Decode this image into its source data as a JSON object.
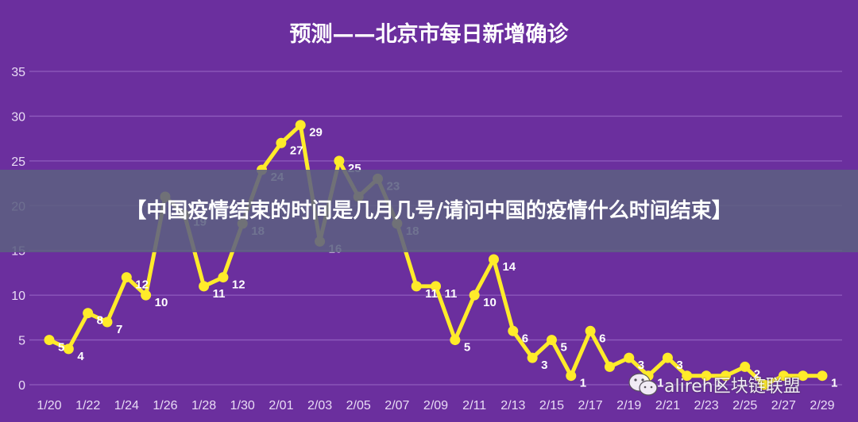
{
  "chart_data": {
    "type": "line",
    "title": "预测——北京市每日新增确诊",
    "xlabel": "",
    "ylabel": "",
    "ylim": [
      0,
      35
    ],
    "yticks": [
      0,
      5,
      10,
      15,
      20,
      25,
      30,
      35
    ],
    "grid": true,
    "x_tick_labels": [
      "1/20",
      "1/22",
      "1/24",
      "1/26",
      "1/28",
      "1/30",
      "2/01",
      "2/03",
      "2/05",
      "2/07",
      "2/09",
      "2/11",
      "2/13",
      "2/15",
      "2/17",
      "2/19",
      "2/21",
      "2/23",
      "2/25",
      "2/27",
      "2/29"
    ],
    "categories": [
      "1/20",
      "1/21",
      "1/22",
      "1/23",
      "1/24",
      "1/25",
      "1/26",
      "1/27",
      "1/28",
      "1/29",
      "1/30",
      "1/31",
      "2/01",
      "2/02",
      "2/03",
      "2/04",
      "2/05",
      "2/06",
      "2/07",
      "2/08",
      "2/09",
      "2/10",
      "2/11",
      "2/12",
      "2/13",
      "2/14",
      "2/15",
      "2/16",
      "2/17",
      "2/18",
      "2/19",
      "2/20",
      "2/21",
      "2/22",
      "2/23",
      "2/24",
      "2/25",
      "2/26",
      "2/27",
      "2/28",
      "2/29"
    ],
    "series": [
      {
        "name": "",
        "color": "#ffeb2a",
        "values": [
          5,
          4,
          8,
          7,
          12,
          10,
          21,
          19,
          11,
          12,
          18,
          24,
          27,
          29,
          16,
          25,
          21,
          23,
          18,
          11,
          11,
          5,
          10,
          14,
          6,
          3,
          5,
          1,
          6,
          2,
          3,
          1,
          3,
          1,
          1,
          1,
          2,
          0,
          1,
          1,
          1
        ]
      }
    ],
    "point_labels": [
      "5",
      "4",
      "8",
      "7",
      "12",
      "10",
      "",
      "19",
      "11",
      "12",
      "18",
      "24",
      "27",
      "29",
      "16",
      "25",
      "",
      "23",
      "18",
      "11",
      "11",
      "5",
      "10",
      "14",
      "6",
      "3",
      "5",
      "1",
      "6",
      "",
      "3",
      "1",
      "3",
      "",
      "1",
      "",
      "2",
      "",
      "",
      "",
      "1"
    ]
  },
  "banner": {
    "text": "【中国疫情结束的时间是几月几号/请问中国的疫情什么时间结束】"
  },
  "watermark": {
    "text": "alireh区块链联盟",
    "icon": "wechat-icon"
  },
  "colors": {
    "background": "#6b2f9e",
    "line": "#ffeb2a",
    "grid": "#8f5cbd",
    "banner": "#5c6082"
  }
}
